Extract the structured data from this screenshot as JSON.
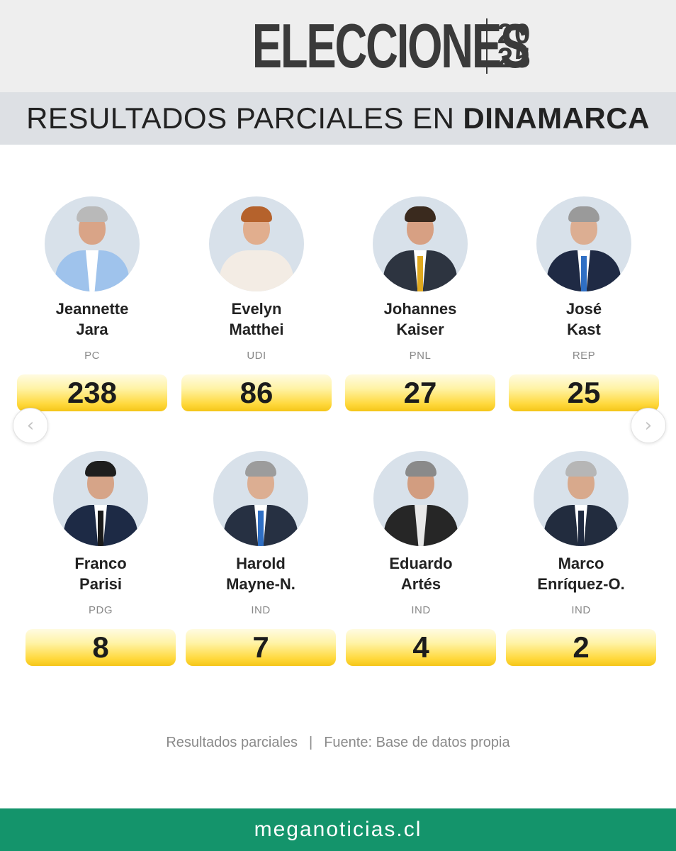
{
  "header": {
    "logo_word": "ELECCIONES",
    "logo_year_top": "20",
    "logo_year_bottom": "25",
    "subtitle_plain": "RESULTADOS PARCIALES EN",
    "subtitle_strong": "DINAMARCA"
  },
  "candidates": [
    {
      "first": "Jeannette",
      "last": "Jara",
      "party": "PC",
      "votes": "238"
    },
    {
      "first": "Evelyn",
      "last": "Matthei",
      "party": "UDI",
      "votes": "86"
    },
    {
      "first": "Johannes",
      "last": "Kaiser",
      "party": "PNL",
      "votes": "27"
    },
    {
      "first": "José",
      "last": "Kast",
      "party": "REP",
      "votes": "25"
    },
    {
      "first": "Franco",
      "last": "Parisi",
      "party": "PDG",
      "votes": "8"
    },
    {
      "first": "Harold",
      "last": "Mayne-N.",
      "party": "IND",
      "votes": "7"
    },
    {
      "first": "Eduardo",
      "last": "Artés",
      "party": "IND",
      "votes": "4"
    },
    {
      "first": "Marco",
      "last": "Enríquez-O.",
      "party": "IND",
      "votes": "2"
    }
  ],
  "nav": {
    "prev_icon": "chevron-left-icon",
    "next_icon": "chevron-right-icon",
    "prev_glyph": "‹",
    "next_glyph": "›"
  },
  "footer": {
    "note_left": "Resultados parciales",
    "separator": "|",
    "note_right": "Fuente: Base de datos propia",
    "brand": "meganoticias.cl"
  },
  "colors": {
    "header_bg": "#eeeeee",
    "subtitle_bg": "#dde0e4",
    "vote_gradient_bottom": "#f5c518",
    "brand_bar": "#14946b"
  }
}
